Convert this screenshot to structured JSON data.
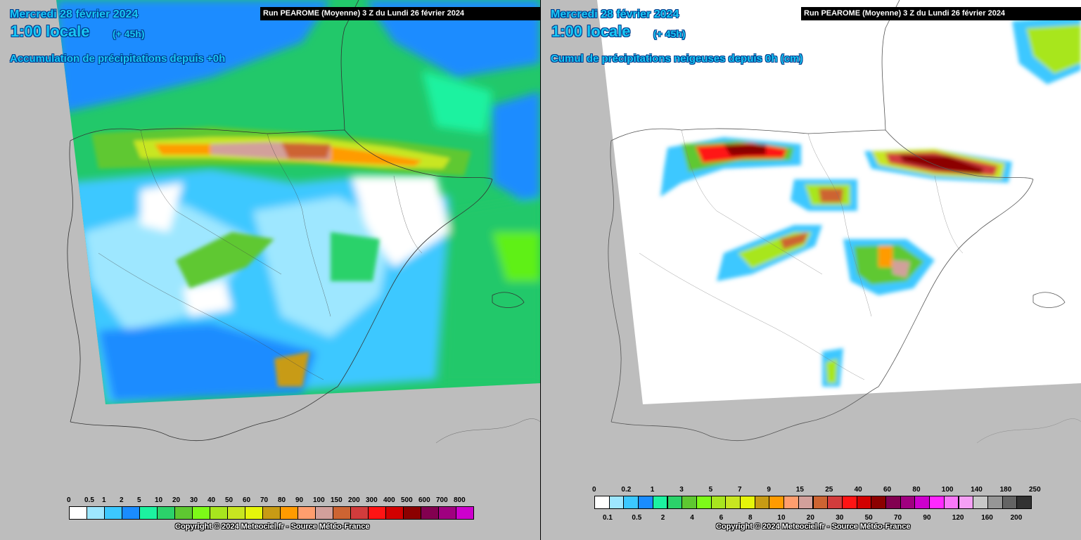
{
  "left_panel": {
    "date": "Mercredi 28 février 2024",
    "hour": "1:00 locale",
    "offset": "(+ 45h)",
    "title": "Accumulation de précipitations depuis +0h",
    "run": "Run PEAROME (Moyenne) 3 Z du Lundi 26 février 2024",
    "copyright": "Copyright © 2024 Meteociel.fr - Source Météo-France",
    "legend": {
      "labels": [
        "0",
        "0.5",
        "1",
        "2",
        "5",
        "10",
        "20",
        "30",
        "40",
        "50",
        "60",
        "70",
        "80",
        "90",
        "100",
        "150",
        "200",
        "300",
        "400",
        "500",
        "600",
        "700",
        "800"
      ],
      "colors": [
        "#ffffff",
        "#9ee7ff",
        "#3cc8ff",
        "#1a8cff",
        "#1cf2a0",
        "#2bd26a",
        "#5ec831",
        "#7dfa18",
        "#a8e61e",
        "#c8e620",
        "#e6f50a",
        "#c89b14",
        "#ff9b00",
        "#ff9e6e",
        "#d2a09b",
        "#cd6432",
        "#d23c3c",
        "#ff1414",
        "#d20000",
        "#8c0000",
        "#820050",
        "#a00080",
        "#cd00cd"
      ]
    }
  },
  "right_panel": {
    "date": "Mercredi 28 février 2024",
    "hour": "1:00 locale",
    "offset": "(+ 45h)",
    "title": "Cumul de précipitations neigeuses depuis 0h (cm)",
    "run": "Run PEAROME (Moyenne) 3 Z du Lundi 26 février 2024",
    "copyright": "Copyright © 2024 Meteociel.fr - Source Météo-France",
    "legend": {
      "top_labels": [
        "0",
        "0.2",
        "1",
        "3",
        "5",
        "7",
        "9",
        "15",
        "25",
        "40",
        "60",
        "80",
        "100",
        "140",
        "180",
        "250"
      ],
      "bottom_labels": [
        "0.1",
        "0.5",
        "2",
        "4",
        "6",
        "8",
        "10",
        "20",
        "30",
        "50",
        "70",
        "90",
        "120",
        "160",
        "200"
      ],
      "colors": [
        "#ffffff",
        "#9ee7ff",
        "#3cc8ff",
        "#1a8cff",
        "#1cf2a0",
        "#2bd26a",
        "#5ec831",
        "#7dfa18",
        "#a8e61e",
        "#c8e620",
        "#e6f50a",
        "#c89b14",
        "#ff9b00",
        "#ff9e6e",
        "#d2a09b",
        "#cd6432",
        "#d23c3c",
        "#ff1414",
        "#d20000",
        "#8c0000",
        "#820050",
        "#a00080",
        "#cd00cd",
        "#ff28ff",
        "#f878f8",
        "#f5a0f5",
        "#c8c8c8",
        "#969696",
        "#646464",
        "#323232"
      ]
    }
  }
}
